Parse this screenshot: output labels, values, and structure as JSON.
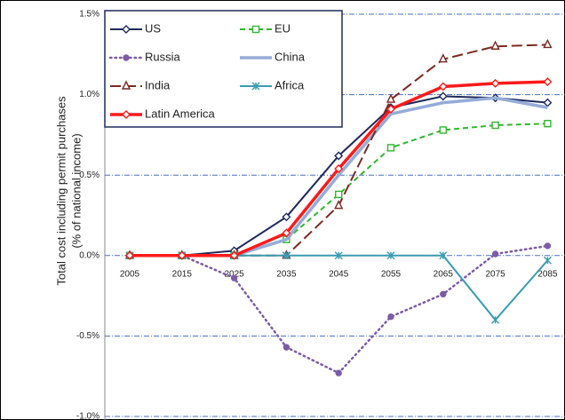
{
  "chart_data": {
    "type": "line",
    "y_label": [
      "Total cost including permit purchases",
      "(% of national income)"
    ],
    "categories": [
      "2005",
      "2015",
      "2025",
      "2035",
      "2045",
      "2055",
      "2065",
      "2075",
      "2085"
    ],
    "ylim": [
      -1.0,
      1.5
    ],
    "yticks": [
      {
        "value": -1.0,
        "label": "-1.0%"
      },
      {
        "value": -0.5,
        "label": "-0.5%"
      },
      {
        "value": 0,
        "label": "0.0%"
      },
      {
        "value": 0.5,
        "label": "0.5%"
      },
      {
        "value": 1.0,
        "label": "1.0%"
      },
      {
        "value": 1.5,
        "label": "1.5%"
      }
    ],
    "grid": true,
    "legend": "top-left",
    "series": [
      {
        "name": "US",
        "color": "#1f2a5c",
        "dash": "solid",
        "marker": "diamond",
        "values": [
          0,
          0,
          0.03,
          0.24,
          0.62,
          0.92,
          0.99,
          0.98,
          0.95
        ]
      },
      {
        "name": "EU",
        "color": "#2eb82e",
        "dash": "dashed",
        "marker": "square",
        "values": [
          0,
          0,
          0,
          0.1,
          0.38,
          0.67,
          0.78,
          0.81,
          0.82
        ]
      },
      {
        "name": "Russia",
        "color": "#7d5ba6",
        "dash": "dotted",
        "marker": "circle",
        "values": [
          0,
          0,
          -0.14,
          -0.57,
          -0.73,
          -0.38,
          -0.24,
          0.01,
          0.06
        ]
      },
      {
        "name": "China",
        "color": "#95acd8",
        "dash": "thick",
        "marker": "none",
        "values": [
          0,
          0,
          0,
          0.1,
          0.5,
          0.88,
          0.95,
          0.98,
          0.92
        ]
      },
      {
        "name": "India",
        "color": "#7b2a22",
        "dash": "longdash",
        "marker": "triangle",
        "values": [
          0,
          0,
          0,
          0,
          0.31,
          0.97,
          1.22,
          1.3,
          1.31
        ]
      },
      {
        "name": "Africa",
        "color": "#3a9cb0",
        "dash": "solid",
        "marker": "star",
        "values": [
          0,
          0,
          0,
          0,
          0,
          0,
          0,
          -0.4,
          -0.03
        ]
      },
      {
        "name": "Latin America",
        "color": "#ff1a1a",
        "dash": "thick",
        "marker": "diamond",
        "values": [
          0,
          0,
          0,
          0.14,
          0.54,
          0.91,
          1.05,
          1.07,
          1.08
        ]
      }
    ]
  }
}
